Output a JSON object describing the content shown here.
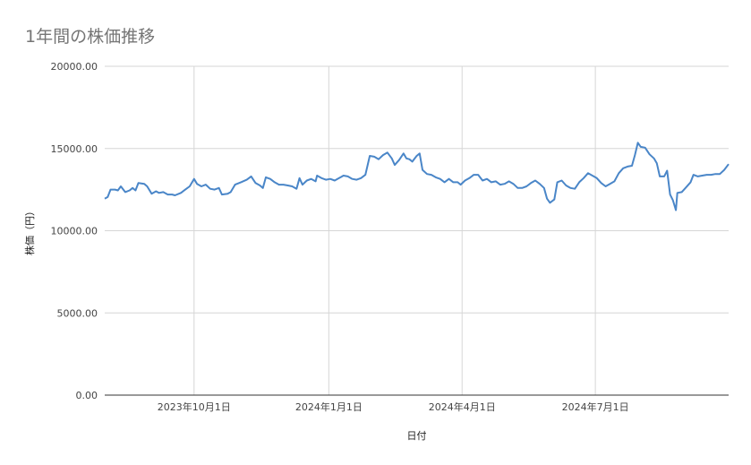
{
  "chart_data": {
    "type": "line",
    "title": "1年間の株価推移",
    "xlabel": "日付",
    "ylabel": "株価（円）",
    "ylim": [
      0,
      20000
    ],
    "y_ticks": [
      "0.00",
      "5000.00",
      "10000.00",
      "15000.00",
      "20000.00"
    ],
    "x_range": [
      "2023-08-01",
      "2024-09-30"
    ],
    "x_ticks": [
      {
        "date": "2023-10-01",
        "label": "2023年10月1日"
      },
      {
        "date": "2024-01-01",
        "label": "2024年1月1日"
      },
      {
        "date": "2024-04-01",
        "label": "2024年4月1日"
      },
      {
        "date": "2024-07-01",
        "label": "2024年7月1日"
      }
    ],
    "grid": true,
    "series": [
      {
        "color": "#4a86c8",
        "points": [
          [
            "2023-08-01",
            11950
          ],
          [
            "2023-08-03",
            12050
          ],
          [
            "2023-08-05",
            12500
          ],
          [
            "2023-08-08",
            12500
          ],
          [
            "2023-08-10",
            12450
          ],
          [
            "2023-08-12",
            12700
          ],
          [
            "2023-08-15",
            12350
          ],
          [
            "2023-08-18",
            12450
          ],
          [
            "2023-08-20",
            12600
          ],
          [
            "2023-08-22",
            12450
          ],
          [
            "2023-08-24",
            12900
          ],
          [
            "2023-08-28",
            12850
          ],
          [
            "2023-08-30",
            12700
          ],
          [
            "2023-09-02",
            12250
          ],
          [
            "2023-09-05",
            12400
          ],
          [
            "2023-09-07",
            12300
          ],
          [
            "2023-09-10",
            12350
          ],
          [
            "2023-09-13",
            12200
          ],
          [
            "2023-09-16",
            12200
          ],
          [
            "2023-09-18",
            12150
          ],
          [
            "2023-09-22",
            12300
          ],
          [
            "2023-09-25",
            12500
          ],
          [
            "2023-09-28",
            12700
          ],
          [
            "2023-10-01",
            13150
          ],
          [
            "2023-10-03",
            12850
          ],
          [
            "2023-10-06",
            12700
          ],
          [
            "2023-10-09",
            12800
          ],
          [
            "2023-10-12",
            12550
          ],
          [
            "2023-10-15",
            12500
          ],
          [
            "2023-10-18",
            12600
          ],
          [
            "2023-10-20",
            12200
          ],
          [
            "2023-10-24",
            12250
          ],
          [
            "2023-10-26",
            12350
          ],
          [
            "2023-10-29",
            12800
          ],
          [
            "2023-11-02",
            12950
          ],
          [
            "2023-11-06",
            13100
          ],
          [
            "2023-11-09",
            13300
          ],
          [
            "2023-11-12",
            12900
          ],
          [
            "2023-11-15",
            12750
          ],
          [
            "2023-11-17",
            12600
          ],
          [
            "2023-11-19",
            13250
          ],
          [
            "2023-11-22",
            13150
          ],
          [
            "2023-11-25",
            12950
          ],
          [
            "2023-11-28",
            12800
          ],
          [
            "2023-12-01",
            12800
          ],
          [
            "2023-12-04",
            12750
          ],
          [
            "2023-12-07",
            12700
          ],
          [
            "2023-12-10",
            12550
          ],
          [
            "2023-12-12",
            13200
          ],
          [
            "2023-12-14",
            12800
          ],
          [
            "2023-12-17",
            13050
          ],
          [
            "2023-12-20",
            13150
          ],
          [
            "2023-12-23",
            13000
          ],
          [
            "2023-12-24",
            13350
          ],
          [
            "2023-12-27",
            13200
          ],
          [
            "2023-12-30",
            13100
          ],
          [
            "2024-01-02",
            13150
          ],
          [
            "2024-01-05",
            13050
          ],
          [
            "2024-01-08",
            13200
          ],
          [
            "2024-01-11",
            13350
          ],
          [
            "2024-01-14",
            13300
          ],
          [
            "2024-01-17",
            13150
          ],
          [
            "2024-01-20",
            13100
          ],
          [
            "2024-01-23",
            13200
          ],
          [
            "2024-01-26",
            13400
          ],
          [
            "2024-01-29",
            14550
          ],
          [
            "2024-02-01",
            14500
          ],
          [
            "2024-02-04",
            14350
          ],
          [
            "2024-02-07",
            14600
          ],
          [
            "2024-02-10",
            14750
          ],
          [
            "2024-02-13",
            14400
          ],
          [
            "2024-02-15",
            14000
          ],
          [
            "2024-02-18",
            14300
          ],
          [
            "2024-02-21",
            14700
          ],
          [
            "2024-02-23",
            14400
          ],
          [
            "2024-02-25",
            14350
          ],
          [
            "2024-02-27",
            14200
          ],
          [
            "2024-03-01",
            14550
          ],
          [
            "2024-03-03",
            14700
          ],
          [
            "2024-03-05",
            13700
          ],
          [
            "2024-03-08",
            13450
          ],
          [
            "2024-03-11",
            13400
          ],
          [
            "2024-03-14",
            13250
          ],
          [
            "2024-03-17",
            13150
          ],
          [
            "2024-03-20",
            12950
          ],
          [
            "2024-03-23",
            13150
          ],
          [
            "2024-03-26",
            12950
          ],
          [
            "2024-03-29",
            12950
          ],
          [
            "2024-03-31",
            12800
          ],
          [
            "2024-04-03",
            13050
          ],
          [
            "2024-04-06",
            13200
          ],
          [
            "2024-04-09",
            13400
          ],
          [
            "2024-04-12",
            13400
          ],
          [
            "2024-04-15",
            13050
          ],
          [
            "2024-04-18",
            13150
          ],
          [
            "2024-04-21",
            12950
          ],
          [
            "2024-04-24",
            13000
          ],
          [
            "2024-04-27",
            12800
          ],
          [
            "2024-04-30",
            12850
          ],
          [
            "2024-05-03",
            13000
          ],
          [
            "2024-05-06",
            12850
          ],
          [
            "2024-05-09",
            12600
          ],
          [
            "2024-05-12",
            12600
          ],
          [
            "2024-05-15",
            12700
          ],
          [
            "2024-05-18",
            12900
          ],
          [
            "2024-05-21",
            13050
          ],
          [
            "2024-05-24",
            12850
          ],
          [
            "2024-05-27",
            12600
          ],
          [
            "2024-05-29",
            11950
          ],
          [
            "2024-05-31",
            11700
          ],
          [
            "2024-06-03",
            11900
          ],
          [
            "2024-06-05",
            12950
          ],
          [
            "2024-06-08",
            13050
          ],
          [
            "2024-06-11",
            12750
          ],
          [
            "2024-06-14",
            12600
          ],
          [
            "2024-06-17",
            12550
          ],
          [
            "2024-06-20",
            12950
          ],
          [
            "2024-06-23",
            13200
          ],
          [
            "2024-06-26",
            13500
          ],
          [
            "2024-06-29",
            13350
          ],
          [
            "2024-07-02",
            13200
          ],
          [
            "2024-07-05",
            12900
          ],
          [
            "2024-07-08",
            12700
          ],
          [
            "2024-07-11",
            12850
          ],
          [
            "2024-07-14",
            13000
          ],
          [
            "2024-07-17",
            13500
          ],
          [
            "2024-07-20",
            13800
          ],
          [
            "2024-07-23",
            13900
          ],
          [
            "2024-07-26",
            13950
          ],
          [
            "2024-07-28",
            14600
          ],
          [
            "2024-07-30",
            15350
          ],
          [
            "2024-08-01",
            15100
          ],
          [
            "2024-08-04",
            15050
          ],
          [
            "2024-08-07",
            14650
          ],
          [
            "2024-08-10",
            14400
          ],
          [
            "2024-08-12",
            14100
          ],
          [
            "2024-08-14",
            13300
          ],
          [
            "2024-08-17",
            13300
          ],
          [
            "2024-08-19",
            13650
          ],
          [
            "2024-08-21",
            12200
          ],
          [
            "2024-08-23",
            11850
          ],
          [
            "2024-08-25",
            11250
          ],
          [
            "2024-08-26",
            12300
          ],
          [
            "2024-08-29",
            12350
          ],
          [
            "2024-09-01",
            12650
          ],
          [
            "2024-09-04",
            12950
          ],
          [
            "2024-09-06",
            13400
          ],
          [
            "2024-09-09",
            13300
          ],
          [
            "2024-09-12",
            13350
          ],
          [
            "2024-09-15",
            13400
          ],
          [
            "2024-09-18",
            13400
          ],
          [
            "2024-09-21",
            13450
          ],
          [
            "2024-09-24",
            13450
          ],
          [
            "2024-09-27",
            13700
          ],
          [
            "2024-09-30",
            14050
          ]
        ]
      }
    ]
  }
}
